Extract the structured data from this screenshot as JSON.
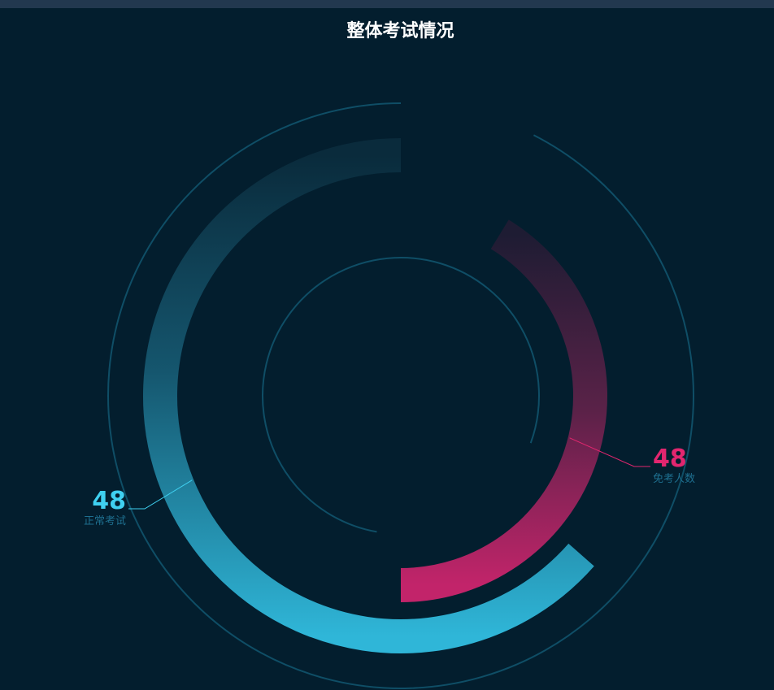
{
  "chart_data": {
    "type": "pie",
    "title": "整体考试情况",
    "series": [
      {
        "name": "正常考试",
        "value": 48,
        "color": "#2fb6d8"
      },
      {
        "name": "免考人数",
        "value": 48,
        "color": "#e2266f"
      }
    ],
    "legend": "none"
  },
  "colors": {
    "background": "#031e2e",
    "decorative_ring": "#0f4e66",
    "normal_gradient_start": "#0a2b3c",
    "normal_gradient_end": "#2fb6d8",
    "exempt_gradient_start": "#1e1c33",
    "exempt_gradient_end": "#c2246a"
  }
}
